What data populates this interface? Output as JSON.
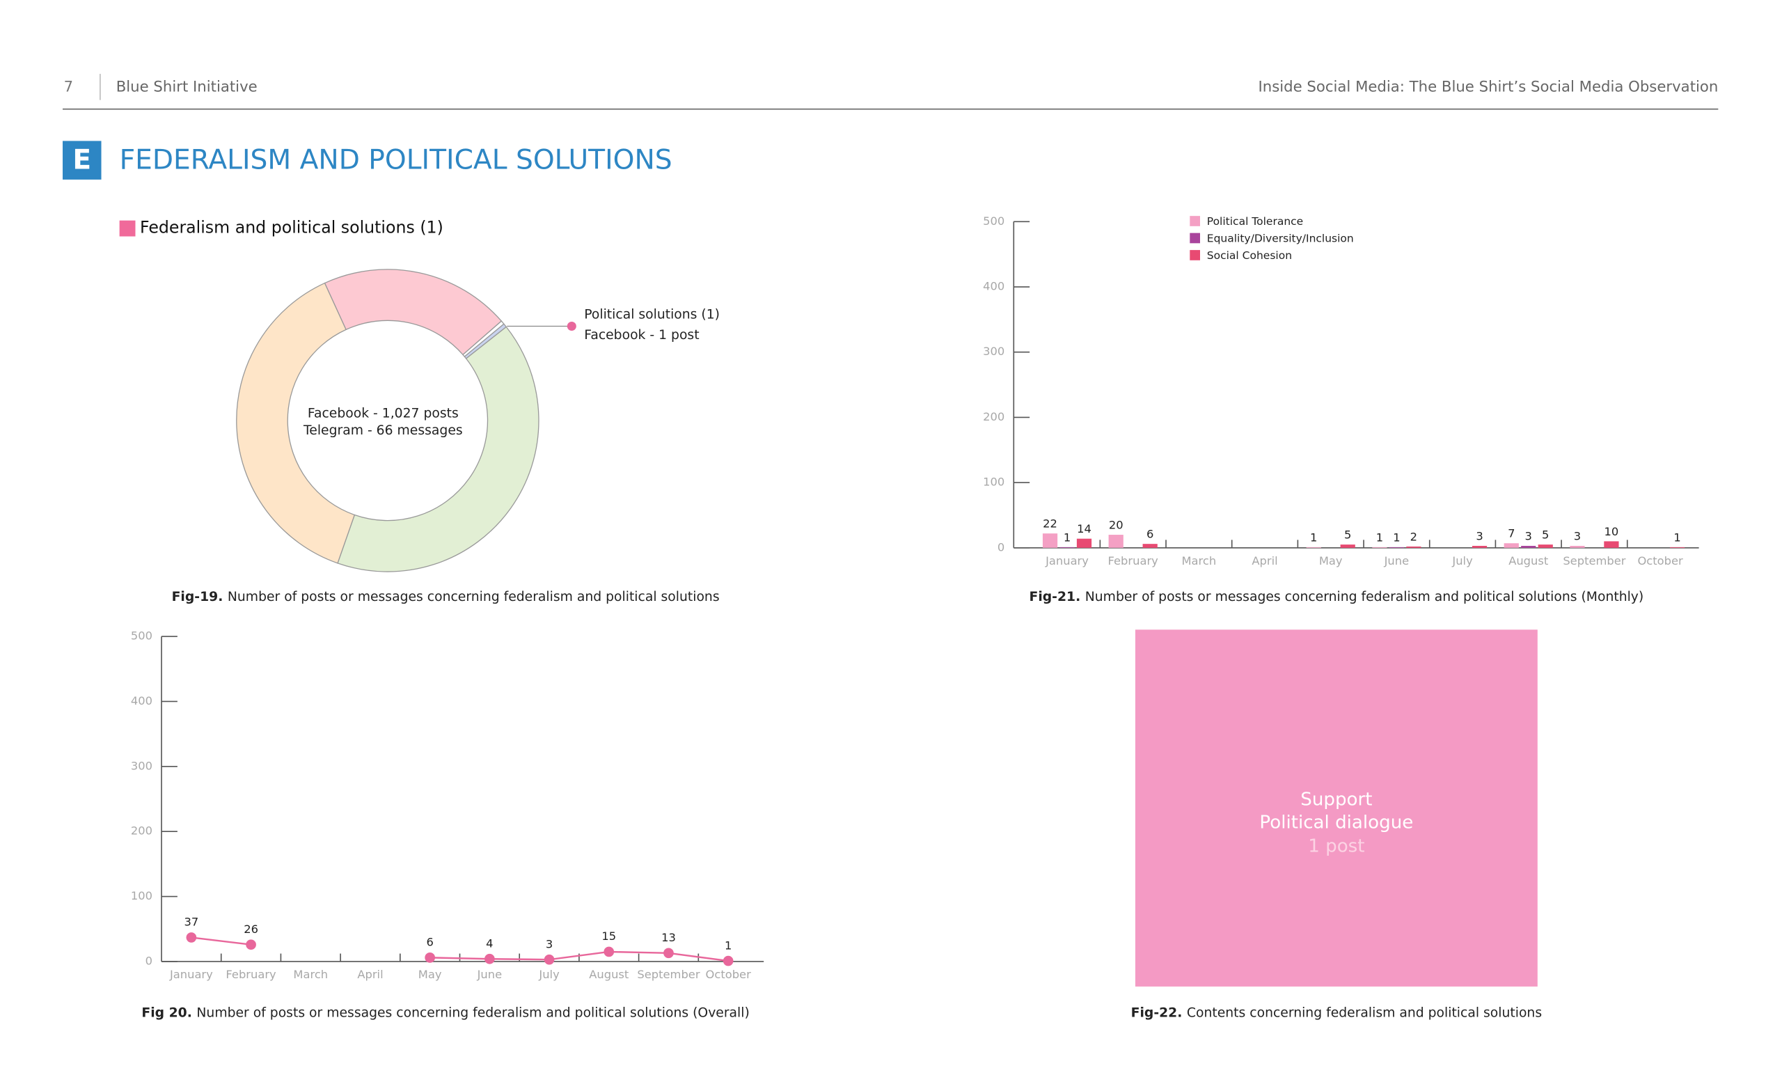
{
  "header": {
    "page": "7",
    "org": "Blue Shirt Initiative",
    "publication": "Inside Social Media: The Blue Shirt’s Social Media Observation"
  },
  "section": {
    "letter": "E",
    "title": "FEDERALISM AND POLITICAL SOLUTIONS"
  },
  "chart_data": [
    {
      "type": "donut",
      "title": "Federalism and political solutions (1)",
      "legend_color": "#f06a9a",
      "center_text": [
        "Facebook - 1,027 posts",
        "Telegram - 66 messages"
      ],
      "annotation": [
        "Political solutions (1)",
        "Facebook  -    1 post"
      ],
      "values": [
        20.4,
        0.4,
        0.4,
        41,
        37.8
      ],
      "colors": [
        "#fdc9d2",
        "#ffffff",
        "#c9d3ee",
        "#e2efd4",
        "#fee5c8"
      ],
      "caption_label": "Fig-19.",
      "caption": "Number of posts or messages concerning federalism and political solutions"
    },
    {
      "type": "bar",
      "categories": [
        "January",
        "February",
        "March",
        "April",
        "May",
        "June",
        "July",
        "August",
        "September",
        "October"
      ],
      "series": [
        {
          "name": "Political Tolerance",
          "color": "#f4a0c4",
          "values": [
            22,
            20,
            null,
            null,
            1,
            1,
            null,
            7,
            3,
            null
          ]
        },
        {
          "name": "Equality/Diversity/Inclusion",
          "color": "#a9449c",
          "values": [
            1,
            null,
            null,
            null,
            null,
            1,
            null,
            3,
            null,
            null
          ]
        },
        {
          "name": "Social Cohesion",
          "color": "#e84a72",
          "values": [
            14,
            6,
            null,
            null,
            5,
            2,
            3,
            5,
            10,
            1
          ]
        }
      ],
      "ylim": [
        0,
        500
      ],
      "yticks": [
        0,
        100,
        200,
        300,
        400,
        500
      ],
      "caption_label": "Fig-21.",
      "caption": "Number of posts or messages concerning federalism and political solutions  (Monthly)"
    },
    {
      "type": "line",
      "categories": [
        "January",
        "February",
        "March",
        "April",
        "May",
        "June",
        "July",
        "August",
        "September",
        "October"
      ],
      "values": [
        37,
        26,
        null,
        null,
        6,
        4,
        3,
        15,
        13,
        1
      ],
      "color": "#e8679b",
      "ylim": [
        0,
        500
      ],
      "yticks": [
        0,
        100,
        200,
        300,
        400,
        500
      ],
      "caption_label": "Fig 20.",
      "caption": "Number of posts or messages concerning federalism and political solutions  (Overall)"
    },
    {
      "type": "treemap",
      "items": [
        {
          "group": "Support",
          "name": "Political dialogue",
          "value": 1,
          "value_label": "1 post",
          "color": "#f49ac4"
        }
      ],
      "caption_label": "Fig-22.",
      "caption": "Contents concerning federalism and political solutions"
    }
  ]
}
